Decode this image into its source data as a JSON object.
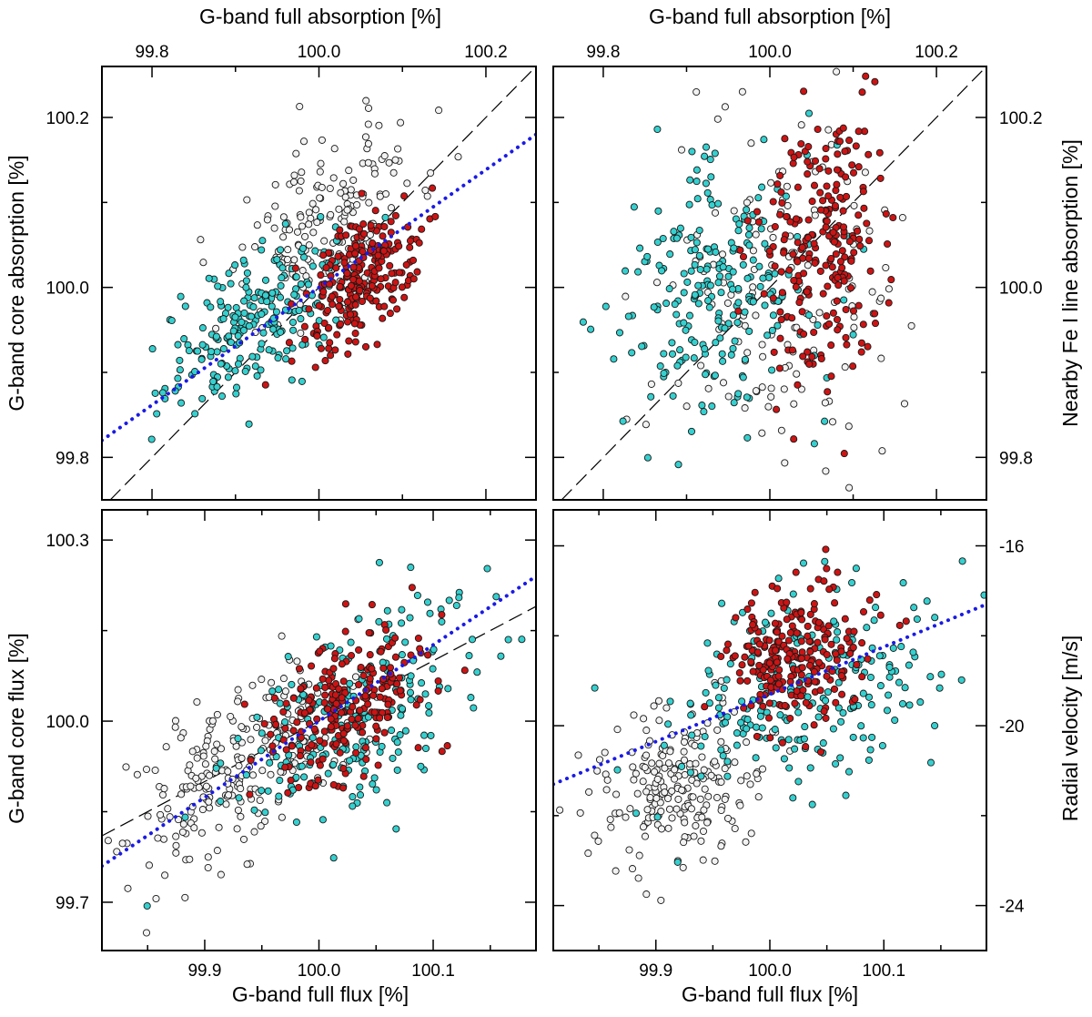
{
  "chart_data": [
    {
      "id": "a",
      "type": "scatter",
      "top_label": "G-band full absorption [%]",
      "left_label": "G-band core absorption [%]",
      "top_ticks": [
        "99.8",
        "100.0",
        "100.2"
      ],
      "left_ticks": [
        "99.8",
        "100.0",
        "100.2"
      ],
      "xlim": [
        99.74,
        100.26
      ],
      "ylim": [
        99.75,
        100.26
      ],
      "identity_line": true,
      "fit_line": {
        "x": [
          99.74,
          100.26
        ],
        "y": [
          99.82,
          100.18
        ]
      },
      "series": [
        {
          "name": "white",
          "color": "#f2f2f2",
          "n": 180,
          "center": [
            100.01,
            100.08
          ],
          "spread": [
            0.06,
            0.06
          ],
          "corr": 0.55
        },
        {
          "name": "cyan",
          "color": "#35d0cf",
          "n": 220,
          "center": [
            99.92,
            99.96
          ],
          "spread": [
            0.05,
            0.05
          ],
          "corr": 0.6
        },
        {
          "name": "red",
          "color": "#cc1414",
          "n": 240,
          "center": [
            100.05,
            100.01
          ],
          "spread": [
            0.035,
            0.04
          ],
          "corr": 0.45
        }
      ]
    },
    {
      "id": "b",
      "type": "scatter",
      "top_label": "G-band full absorption [%]",
      "right_label": "Nearby Fe I line absorption [%]",
      "top_ticks": [
        "99.8",
        "100.0",
        "100.2"
      ],
      "right_ticks": [
        "99.8",
        "100.0",
        "100.2"
      ],
      "xlim": [
        99.74,
        100.26
      ],
      "ylim": [
        99.75,
        100.26
      ],
      "identity_line": true,
      "series": [
        {
          "name": "white",
          "color": "#f2f2f2",
          "n": 150,
          "center": [
            100.0,
            99.98
          ],
          "spread": [
            0.07,
            0.11
          ],
          "corr": 0.0
        },
        {
          "name": "cyan",
          "color": "#35d0cf",
          "n": 240,
          "center": [
            99.94,
            100.0
          ],
          "spread": [
            0.06,
            0.08
          ],
          "corr": 0.0
        },
        {
          "name": "red",
          "color": "#cc1414",
          "n": 240,
          "center": [
            100.06,
            100.05
          ],
          "spread": [
            0.04,
            0.08
          ],
          "corr": 0.1
        }
      ]
    },
    {
      "id": "c",
      "type": "scatter",
      "bottom_label": "G-band full flux [%]",
      "left_label": "G-band core flux [%]",
      "bottom_ticks": [
        "99.9",
        "100.0",
        "100.1"
      ],
      "left_ticks": [
        "99.7",
        "100.0",
        "100.3"
      ],
      "xlim": [
        99.81,
        100.19
      ],
      "ylim": [
        99.62,
        100.35
      ],
      "fit_line": {
        "x": [
          99.81,
          100.19
        ],
        "y": [
          99.76,
          100.24
        ]
      },
      "reference_line": {
        "x": [
          99.81,
          100.19
        ],
        "y": [
          99.81,
          100.19
        ]
      },
      "series": [
        {
          "name": "white",
          "color": "#f2f2f2",
          "n": 240,
          "center": [
            99.93,
            99.92
          ],
          "spread": [
            0.05,
            0.09
          ],
          "corr": 0.6
        },
        {
          "name": "cyan",
          "color": "#35d0cf",
          "n": 220,
          "center": [
            100.03,
            100.0
          ],
          "spread": [
            0.06,
            0.1
          ],
          "corr": 0.6
        },
        {
          "name": "red",
          "color": "#cc1414",
          "n": 240,
          "center": [
            100.03,
            100.02
          ],
          "spread": [
            0.035,
            0.07
          ],
          "corr": 0.5
        }
      ]
    },
    {
      "id": "d",
      "type": "scatter",
      "bottom_label": "G-band full flux [%]",
      "right_label": "Radial velocity [m/s]",
      "bottom_ticks": [
        "99.9",
        "100.0",
        "100.1"
      ],
      "right_ticks": [
        "-16",
        "-20",
        "-24"
      ],
      "xlim": [
        99.81,
        100.19
      ],
      "ylim": [
        -25.0,
        -15.2
      ],
      "fit_line": {
        "x": [
          99.81,
          100.19
        ],
        "y": [
          -21.3,
          -17.3
        ]
      },
      "series": [
        {
          "name": "white",
          "color": "#f2f2f2",
          "n": 220,
          "center": [
            99.92,
            -21.3
          ],
          "spread": [
            0.04,
            0.9
          ],
          "corr": 0.2
        },
        {
          "name": "cyan",
          "color": "#35d0cf",
          "n": 230,
          "center": [
            100.04,
            -19.0
          ],
          "spread": [
            0.06,
            1.1
          ],
          "corr": 0.3
        },
        {
          "name": "red",
          "color": "#cc1414",
          "n": 240,
          "center": [
            100.02,
            -18.4
          ],
          "spread": [
            0.03,
            0.8
          ],
          "corr": 0.1
        }
      ]
    }
  ]
}
